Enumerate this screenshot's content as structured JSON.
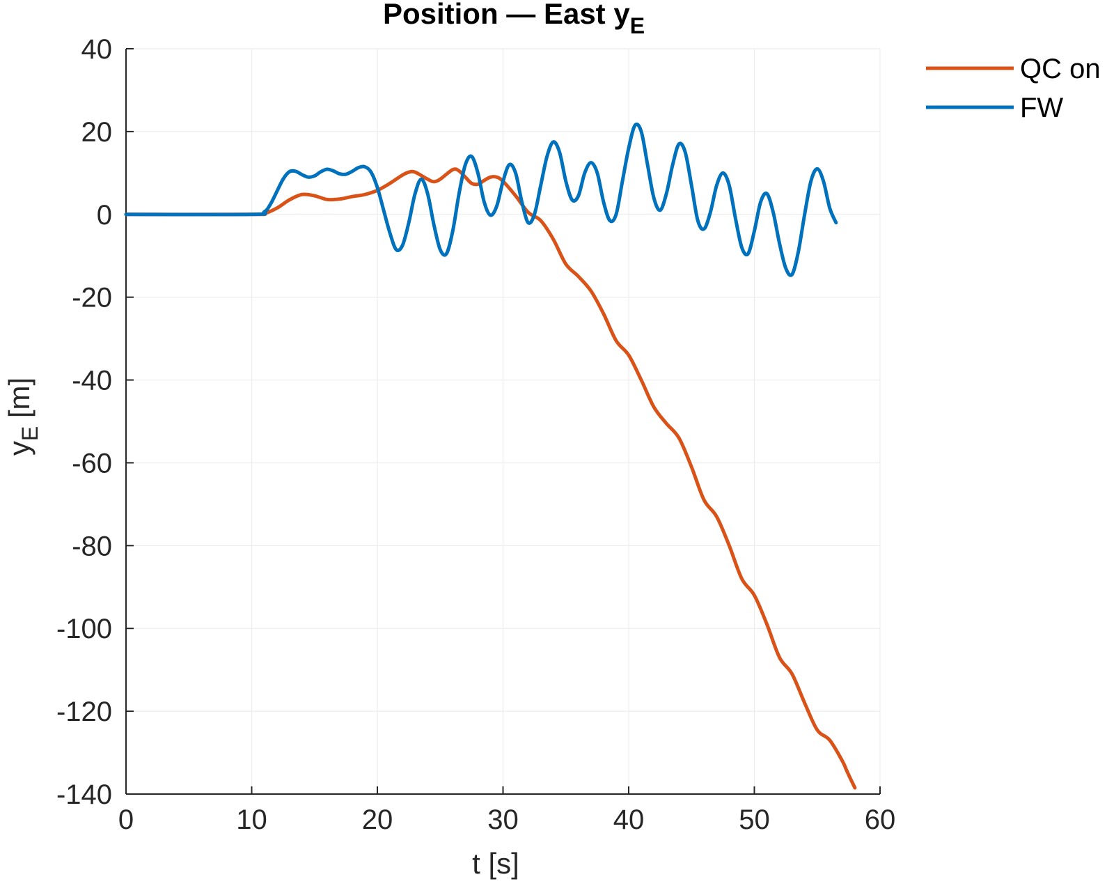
{
  "chart_data": {
    "type": "line",
    "title": "Position — East y",
    "title_subscript": "E",
    "xlabel": "t [s]",
    "ylabel": "y",
    "ylabel_subscript": "E",
    "ylabel_unit": " [m]",
    "xlim": [
      0,
      60
    ],
    "ylim": [
      -140,
      40
    ],
    "xticks": [
      0,
      10,
      20,
      30,
      40,
      50,
      60
    ],
    "yticks": [
      -140,
      -120,
      -100,
      -80,
      -60,
      -40,
      -20,
      0,
      20,
      40
    ],
    "grid": true,
    "legend_position": "top-right",
    "series": [
      {
        "name": "QC on",
        "color": "#D95319",
        "points": [
          [
            0,
            0
          ],
          [
            10,
            0
          ],
          [
            11,
            0.2
          ],
          [
            12,
            1.5
          ],
          [
            13,
            3.5
          ],
          [
            14,
            4.8
          ],
          [
            15,
            4.5
          ],
          [
            16,
            3.6
          ],
          [
            17,
            3.7
          ],
          [
            18,
            4.3
          ],
          [
            19,
            4.8
          ],
          [
            20,
            5.8
          ],
          [
            21,
            7.5
          ],
          [
            22,
            9.5
          ],
          [
            22.5,
            10.2
          ],
          [
            23,
            10.2
          ],
          [
            24,
            8.5
          ],
          [
            24.5,
            7.9
          ],
          [
            25,
            8.5
          ],
          [
            26,
            10.8
          ],
          [
            26.5,
            10.5
          ],
          [
            27,
            9.0
          ],
          [
            27.5,
            7.5
          ],
          [
            28,
            7.3
          ],
          [
            28.5,
            8.2
          ],
          [
            29,
            9.0
          ],
          [
            29.5,
            9.0
          ],
          [
            30,
            8.0
          ],
          [
            31,
            4.5
          ],
          [
            32,
            0.5
          ],
          [
            33,
            -1.5
          ],
          [
            34,
            -6
          ],
          [
            35,
            -12
          ],
          [
            36,
            -15
          ],
          [
            37,
            -18.5
          ],
          [
            38,
            -24
          ],
          [
            39,
            -30.5
          ],
          [
            40,
            -34
          ],
          [
            41,
            -40
          ],
          [
            42,
            -46.5
          ],
          [
            43,
            -50.5
          ],
          [
            44,
            -54
          ],
          [
            45,
            -61
          ],
          [
            46,
            -69
          ],
          [
            47,
            -73
          ],
          [
            48,
            -80
          ],
          [
            49,
            -88
          ],
          [
            50,
            -92
          ],
          [
            51,
            -99
          ],
          [
            52,
            -107
          ],
          [
            53,
            -111
          ],
          [
            54,
            -118
          ],
          [
            55,
            -124.5
          ],
          [
            56,
            -127
          ],
          [
            57,
            -132
          ],
          [
            57.3,
            -134
          ],
          [
            57.6,
            -136
          ],
          [
            58,
            -138.5
          ]
        ]
      },
      {
        "name": "FW",
        "color": "#0072BD",
        "points": [
          [
            0,
            0
          ],
          [
            10,
            0
          ],
          [
            11,
            0.6
          ],
          [
            11.5,
            2.5
          ],
          [
            12,
            5.5
          ],
          [
            12.5,
            8.5
          ],
          [
            13,
            10.3
          ],
          [
            13.5,
            10.4
          ],
          [
            14,
            9.6
          ],
          [
            14.5,
            9.0
          ],
          [
            15,
            9.3
          ],
          [
            15.5,
            10.3
          ],
          [
            16,
            10.9
          ],
          [
            16.5,
            10.5
          ],
          [
            17,
            9.8
          ],
          [
            17.5,
            9.7
          ],
          [
            18,
            10.4
          ],
          [
            18.5,
            11.3
          ],
          [
            19,
            11.5
          ],
          [
            19.5,
            10.2
          ],
          [
            20,
            6.5
          ],
          [
            20.5,
            1.0
          ],
          [
            21,
            -4.5
          ],
          [
            21.5,
            -8.5
          ],
          [
            22,
            -7.5
          ],
          [
            22.5,
            -2.0
          ],
          [
            23,
            5.0
          ],
          [
            23.5,
            8.5
          ],
          [
            24,
            5.0
          ],
          [
            24.5,
            -2.5
          ],
          [
            25,
            -8.5
          ],
          [
            25.5,
            -9.5
          ],
          [
            26,
            -4.0
          ],
          [
            26.5,
            5.0
          ],
          [
            27,
            12.0
          ],
          [
            27.5,
            14.0
          ],
          [
            28,
            10.0
          ],
          [
            28.5,
            3.0
          ],
          [
            29,
            -0.2
          ],
          [
            29.5,
            2.0
          ],
          [
            30,
            8.0
          ],
          [
            30.5,
            12.0
          ],
          [
            31,
            10.0
          ],
          [
            31.5,
            3.0
          ],
          [
            32,
            -2.0
          ],
          [
            32.5,
            0.0
          ],
          [
            33,
            7.0
          ],
          [
            33.5,
            14.0
          ],
          [
            34,
            17.5
          ],
          [
            34.5,
            15.0
          ],
          [
            35,
            8.0
          ],
          [
            35.5,
            3.5
          ],
          [
            36,
            4.5
          ],
          [
            36.5,
            10.0
          ],
          [
            37,
            12.5
          ],
          [
            37.5,
            10.0
          ],
          [
            38,
            3.0
          ],
          [
            38.5,
            -1.5
          ],
          [
            39,
            0.0
          ],
          [
            39.5,
            8.0
          ],
          [
            40,
            16.0
          ],
          [
            40.5,
            21.5
          ],
          [
            41,
            20.0
          ],
          [
            41.5,
            12.0
          ],
          [
            42,
            4.0
          ],
          [
            42.5,
            1.0
          ],
          [
            43,
            5.0
          ],
          [
            43.5,
            12.0
          ],
          [
            44,
            17.0
          ],
          [
            44.5,
            15.0
          ],
          [
            45,
            7.0
          ],
          [
            45.5,
            -1.5
          ],
          [
            46,
            -3.5
          ],
          [
            46.5,
            0.5
          ],
          [
            47,
            7.0
          ],
          [
            47.5,
            10.0
          ],
          [
            48,
            7.0
          ],
          [
            48.5,
            -1.0
          ],
          [
            49,
            -8.0
          ],
          [
            49.5,
            -9.5
          ],
          [
            50,
            -4.0
          ],
          [
            50.5,
            3.0
          ],
          [
            51,
            5.0
          ],
          [
            51.5,
            0.5
          ],
          [
            52,
            -7.0
          ],
          [
            52.5,
            -13.0
          ],
          [
            53,
            -14.5
          ],
          [
            53.5,
            -9.0
          ],
          [
            54,
            0.0
          ],
          [
            54.5,
            8.0
          ],
          [
            55,
            11.0
          ],
          [
            55.5,
            8.0
          ],
          [
            56,
            1.5
          ],
          [
            56.5,
            -2.0
          ]
        ]
      }
    ]
  }
}
